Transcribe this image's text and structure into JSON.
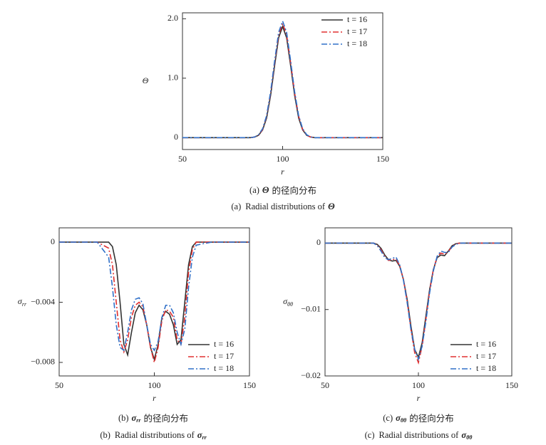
{
  "chart_data": [
    {
      "type": "line",
      "xlabel": "r",
      "ylabel": "Θ",
      "caption_zh": {
        "label": "(a)",
        "symbol": "Θ",
        "text": "的径向分布"
      },
      "caption_en": {
        "label": "(a)",
        "text": "Radial distributions of",
        "symbol": "Θ"
      },
      "xlim": [
        50,
        150
      ],
      "xticks": [
        50,
        100,
        150
      ],
      "ylim": [
        -0.2,
        2.1
      ],
      "yticks": [
        0,
        {
          "value": 1,
          "label": "1.0"
        },
        {
          "value": 2,
          "label": "2.0"
        }
      ],
      "legend": "upper right",
      "x": [
        50,
        60,
        70,
        76,
        78,
        80,
        82,
        84,
        86,
        88,
        90,
        92,
        94,
        96,
        98,
        100,
        102,
        104,
        106,
        108,
        110,
        112,
        114,
        116,
        118,
        120,
        122,
        130,
        140,
        150
      ],
      "series": [
        {
          "name": "t = 16",
          "color": "#333333",
          "style": "solid",
          "values": [
            0,
            0,
            0,
            0,
            0,
            0,
            0,
            0,
            0.01,
            0.04,
            0.13,
            0.33,
            0.71,
            1.21,
            1.68,
            1.87,
            1.68,
            1.21,
            0.71,
            0.33,
            0.13,
            0.04,
            0.01,
            0,
            0,
            0,
            0,
            0,
            0,
            0
          ]
        },
        {
          "name": "t = 17",
          "color": "#e03030",
          "style": "dashdot",
          "values": [
            0,
            0,
            0,
            0,
            0,
            0,
            0,
            0,
            0.01,
            0.04,
            0.14,
            0.36,
            0.75,
            1.26,
            1.73,
            1.92,
            1.73,
            1.26,
            0.75,
            0.36,
            0.14,
            0.04,
            0.01,
            0,
            0,
            0,
            0,
            0,
            0,
            0
          ]
        },
        {
          "name": "t = 18",
          "color": "#3070c8",
          "style": "dashdot",
          "values": [
            0,
            0,
            0,
            0,
            0,
            0,
            0,
            0,
            0.01,
            0.05,
            0.15,
            0.37,
            0.77,
            1.29,
            1.77,
            1.96,
            1.77,
            1.29,
            0.77,
            0.37,
            0.15,
            0.05,
            0.01,
            0,
            0,
            0,
            0,
            0,
            0,
            0
          ]
        }
      ]
    },
    {
      "type": "line",
      "xlabel": "r",
      "ylabel": "σ",
      "ylabel_sub": "rr",
      "caption_zh": {
        "label": "(b)",
        "symbol": "σ",
        "sub": "rr",
        "text": "的径向分布"
      },
      "caption_en": {
        "label": "(b)",
        "text": "Radial distributions of",
        "symbol": "σ",
        "sub": "rr"
      },
      "xlim": [
        50,
        150
      ],
      "xticks": [
        50,
        100,
        150
      ],
      "ylim": [
        -0.0089,
        0.00095
      ],
      "yticks": [
        0,
        {
          "value": -0.004,
          "label": "−0.004"
        },
        {
          "value": -0.008,
          "label": "−0.008"
        }
      ],
      "legend": "lower right",
      "x": [
        50,
        60,
        70,
        76,
        78,
        80,
        82,
        84,
        86,
        88,
        90,
        92,
        94,
        96,
        98,
        100,
        102,
        104,
        106,
        108,
        110,
        112,
        114,
        116,
        118,
        120,
        122,
        130,
        140,
        150
      ],
      "series": [
        {
          "name": "t = 16",
          "color": "#333333",
          "style": "solid",
          "values": [
            0,
            0,
            0,
            0,
            -0.0003,
            -0.0015,
            -0.004,
            -0.0068,
            -0.0075,
            -0.006,
            -0.0047,
            -0.0042,
            -0.0045,
            -0.0055,
            -0.007,
            -0.0078,
            -0.0068,
            -0.005,
            -0.0046,
            -0.0048,
            -0.0055,
            -0.0068,
            -0.0065,
            -0.004,
            -0.0015,
            -0.0003,
            0,
            0,
            0,
            0
          ]
        },
        {
          "name": "t = 17",
          "color": "#e03030",
          "style": "dashdot",
          "values": [
            0,
            0,
            0,
            -0.0004,
            -0.0015,
            -0.004,
            -0.0065,
            -0.0073,
            -0.0065,
            -0.005,
            -0.0042,
            -0.004,
            -0.0043,
            -0.0055,
            -0.007,
            -0.008,
            -0.007,
            -0.0052,
            -0.0045,
            -0.0046,
            -0.005,
            -0.0065,
            -0.0068,
            -0.005,
            -0.002,
            -0.0005,
            0,
            0,
            0,
            0
          ]
        },
        {
          "name": "t = 18",
          "color": "#3070c8",
          "style": "dashdot",
          "values": [
            0,
            0,
            0,
            -0.001,
            -0.003,
            -0.0055,
            -0.007,
            -0.0072,
            -0.006,
            -0.0045,
            -0.0038,
            -0.0037,
            -0.0041,
            -0.0055,
            -0.0068,
            -0.0072,
            -0.0066,
            -0.005,
            -0.0042,
            -0.0042,
            -0.0047,
            -0.006,
            -0.0068,
            -0.0058,
            -0.003,
            -0.001,
            -0.0002,
            0,
            0,
            0
          ]
        }
      ]
    },
    {
      "type": "line",
      "xlabel": "r",
      "ylabel": "σ",
      "ylabel_sub": "θθ",
      "caption_zh": {
        "label": "(c)",
        "symbol": "σ",
        "sub": "θθ",
        "text": "的径向分布"
      },
      "caption_en": {
        "label": "(c)",
        "text": "Radial distributions of",
        "symbol": "σ",
        "sub": "θθ"
      },
      "xlim": [
        50,
        150
      ],
      "xticks": [
        50,
        100,
        150
      ],
      "ylim": [
        -0.02,
        0.0023
      ],
      "yticks": [
        0,
        {
          "value": -0.01,
          "label": "−0.01"
        },
        {
          "value": -0.02,
          "label": "−0.02"
        }
      ],
      "legend": "lower right",
      "x": [
        50,
        60,
        70,
        76,
        78,
        80,
        82,
        84,
        86,
        88,
        90,
        92,
        94,
        96,
        98,
        100,
        102,
        104,
        106,
        108,
        110,
        112,
        114,
        116,
        118,
        120,
        122,
        130,
        140,
        150
      ],
      "series": [
        {
          "name": "t = 16",
          "color": "#333333",
          "style": "solid",
          "values": [
            0,
            0,
            0,
            0,
            -0.0002,
            -0.0008,
            -0.0018,
            -0.0025,
            -0.0027,
            -0.0026,
            -0.0035,
            -0.0055,
            -0.0085,
            -0.0125,
            -0.016,
            -0.0172,
            -0.015,
            -0.011,
            -0.007,
            -0.004,
            -0.0022,
            -0.0018,
            -0.0019,
            -0.0012,
            -0.0004,
            -0.0001,
            0,
            0,
            0,
            0
          ]
        },
        {
          "name": "t = 17",
          "color": "#e03030",
          "style": "dashdot",
          "values": [
            0,
            0,
            0,
            0,
            -0.0003,
            -0.001,
            -0.002,
            -0.0026,
            -0.0025,
            -0.0024,
            -0.0034,
            -0.0055,
            -0.0088,
            -0.013,
            -0.0165,
            -0.018,
            -0.0155,
            -0.0115,
            -0.0072,
            -0.004,
            -0.0021,
            -0.0015,
            -0.0017,
            -0.0013,
            -0.0005,
            -0.0001,
            0,
            0,
            0,
            0
          ]
        },
        {
          "name": "t = 18",
          "color": "#3070c8",
          "style": "dashdot",
          "values": [
            0,
            0,
            0,
            0,
            -0.0004,
            -0.0012,
            -0.0022,
            -0.0025,
            -0.0023,
            -0.0021,
            -0.0033,
            -0.0056,
            -0.009,
            -0.013,
            -0.016,
            -0.0175,
            -0.0155,
            -0.0118,
            -0.0075,
            -0.0042,
            -0.002,
            -0.0012,
            -0.0014,
            -0.0014,
            -0.0006,
            -0.0002,
            0,
            0,
            0,
            0
          ]
        }
      ]
    }
  ]
}
